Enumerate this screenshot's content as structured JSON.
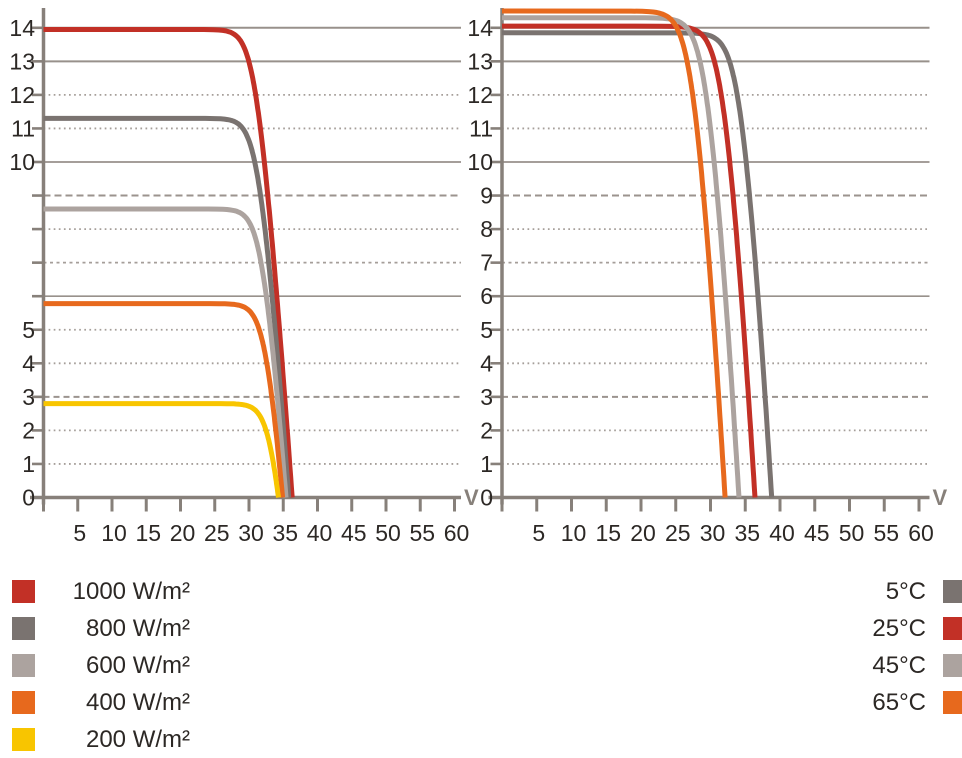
{
  "page": {
    "background": "#ffffff"
  },
  "style_colors": {
    "axis": "#87807a",
    "grid_dotted": "#a59e99",
    "grid_solid": "#98918b",
    "tick_text": "#2c2825",
    "red": "#c23026",
    "dark_gray": "#7a7370",
    "light_gray": "#aca39f",
    "orange": "#e7691d",
    "yellow": "#f8c500"
  },
  "chart_data": [
    {
      "type": "line",
      "id": "iv-curve-vs-irradiance",
      "title": "",
      "xlabel": "V",
      "ylabel": "",
      "x_range": [
        0,
        61
      ],
      "y_range": [
        0,
        14.6
      ],
      "x_ticks": [
        5,
        10,
        15,
        20,
        25,
        30,
        35,
        40,
        45,
        50,
        55,
        60
      ],
      "y_ticks_all": [
        0,
        1,
        2,
        3,
        4,
        5,
        6,
        7,
        8,
        9,
        10,
        11,
        12,
        13,
        14
      ],
      "y_tick_labels_shown": [
        14,
        13,
        12,
        11,
        10,
        5,
        4,
        3,
        2,
        1,
        0
      ],
      "grid": "horizontal",
      "legend_position": "below-left",
      "knee_a": 1.0,
      "tail_rs": 0.28,
      "series": [
        {
          "name": "1000 W/m²",
          "color": "#c23026",
          "isc": 13.95,
          "voc": 36.3
        },
        {
          "name": "800 W/m²",
          "color": "#7a7370",
          "isc": 11.3,
          "voc": 35.8
        },
        {
          "name": "600 W/m²",
          "color": "#aca39f",
          "isc": 8.6,
          "voc": 35.4
        },
        {
          "name": "400 W/m²",
          "color": "#e7691d",
          "isc": 5.78,
          "voc": 34.9
        },
        {
          "name": "200 W/m²",
          "color": "#f8c500",
          "isc": 2.8,
          "voc": 34.3
        }
      ]
    },
    {
      "type": "line",
      "id": "iv-curve-vs-temperature",
      "title": "",
      "xlabel": "V",
      "ylabel": "",
      "x_range": [
        0,
        61
      ],
      "y_range": [
        0,
        14.6
      ],
      "x_ticks": [
        5,
        10,
        15,
        20,
        25,
        30,
        35,
        40,
        45,
        50,
        55,
        60
      ],
      "y_ticks_all": [
        0,
        1,
        2,
        3,
        4,
        5,
        6,
        7,
        8,
        9,
        10,
        11,
        12,
        13,
        14
      ],
      "y_tick_labels_shown": [
        14,
        13,
        12,
        11,
        10,
        9,
        8,
        7,
        6,
        5,
        4,
        3,
        2,
        1,
        0
      ],
      "grid": "horizontal",
      "legend_position": "below-right",
      "knee_a": 1.15,
      "tail_rs": 0.22,
      "series": [
        {
          "name": "5°C",
          "color": "#7a7370",
          "isc": 13.85,
          "voc": 38.8
        },
        {
          "name": "25°C",
          "color": "#c23026",
          "isc": 14.05,
          "voc": 36.4
        },
        {
          "name": "45°C",
          "color": "#aca39f",
          "isc": 14.3,
          "voc": 34.1
        },
        {
          "name": "65°C",
          "color": "#e7691d",
          "isc": 14.5,
          "voc": 32.1
        }
      ]
    }
  ],
  "legends": {
    "irradiance": {
      "items": [
        {
          "label": "1000 W/m²",
          "color": "#c23026"
        },
        {
          "label": "800 W/m²",
          "color": "#7a7370"
        },
        {
          "label": "600 W/m²",
          "color": "#aca39f"
        },
        {
          "label": "400 W/m²",
          "color": "#e7691d"
        },
        {
          "label": "200 W/m²",
          "color": "#f8c500"
        }
      ]
    },
    "temperature": {
      "items": [
        {
          "label": "5°C",
          "color": "#7a7370"
        },
        {
          "label": "25°C",
          "color": "#c23026"
        },
        {
          "label": "45°C",
          "color": "#aca39f"
        },
        {
          "label": "65°C",
          "color": "#e7691d"
        }
      ]
    }
  }
}
